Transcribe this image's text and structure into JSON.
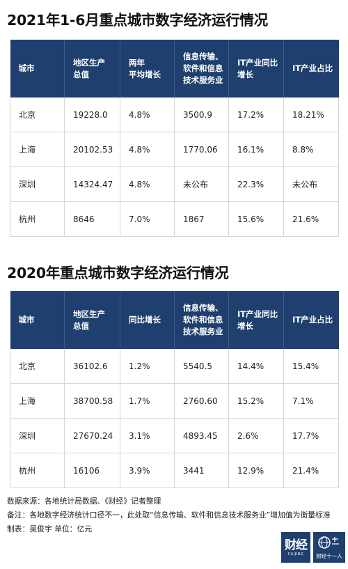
{
  "section1": {
    "title": "2021年1-6月重点城市数字经济运行情况",
    "headers": [
      [
        "城市"
      ],
      [
        "地区生产",
        "总值"
      ],
      [
        "两年",
        "平均增长"
      ],
      [
        "信息传输、",
        "软件和信息",
        "技术服务业"
      ],
      [
        "IT产业同比",
        "增长"
      ],
      [
        "IT产业占比"
      ]
    ],
    "rows": [
      [
        "北京",
        "19228.0",
        "4.8%",
        "3500.9",
        "17.2%",
        "18.21%"
      ],
      [
        "上海",
        "20102.53",
        "4.8%",
        "1770.06",
        "16.1%",
        "8.8%"
      ],
      [
        "深圳",
        "14324.47",
        "4.8%",
        "未公布",
        "22.3%",
        "未公布"
      ],
      [
        "杭州",
        "8646",
        "7.0%",
        "1867",
        "15.6%",
        "21.6%"
      ]
    ]
  },
  "section2": {
    "title": "2020年重点城市数字经济运行情况",
    "headers": [
      [
        "城市"
      ],
      [
        "地区生产",
        "总值"
      ],
      [
        "同比增长"
      ],
      [
        "信息传输、",
        "软件和信息",
        "技术服务业"
      ],
      [
        "IT产业同比",
        "增长"
      ],
      [
        "IT产业占比"
      ]
    ],
    "rows": [
      [
        "北京",
        "36102.6",
        "1.2%",
        "5540.5",
        "14.4%",
        "15.4%"
      ],
      [
        "上海",
        "38700.58",
        "1.7%",
        "2760.60",
        "15.2%",
        "7.1%"
      ],
      [
        "深圳",
        "27670.24",
        "3.1%",
        "4893.45",
        "2.6%",
        "17.7%"
      ],
      [
        "杭州",
        "16106",
        "3.9%",
        "3441",
        "12.9%",
        "21.4%"
      ]
    ]
  },
  "notes": {
    "source": "数据来源：各地统计局数据、《财经》记者整理",
    "remark": "备注：各地数字经济统计口径不一，此处取“信息传输、软件和信息技术服务业”增加值为衡量标准",
    "maker": "制表：吴俊宇   单位：亿元"
  },
  "logos": {
    "caijing_big": "财经",
    "caijing_small": "CAIJING",
    "eleven": "财经十一人"
  },
  "colors": {
    "header_bg": "#1f3f6e",
    "grid": "#d6d6d6"
  }
}
